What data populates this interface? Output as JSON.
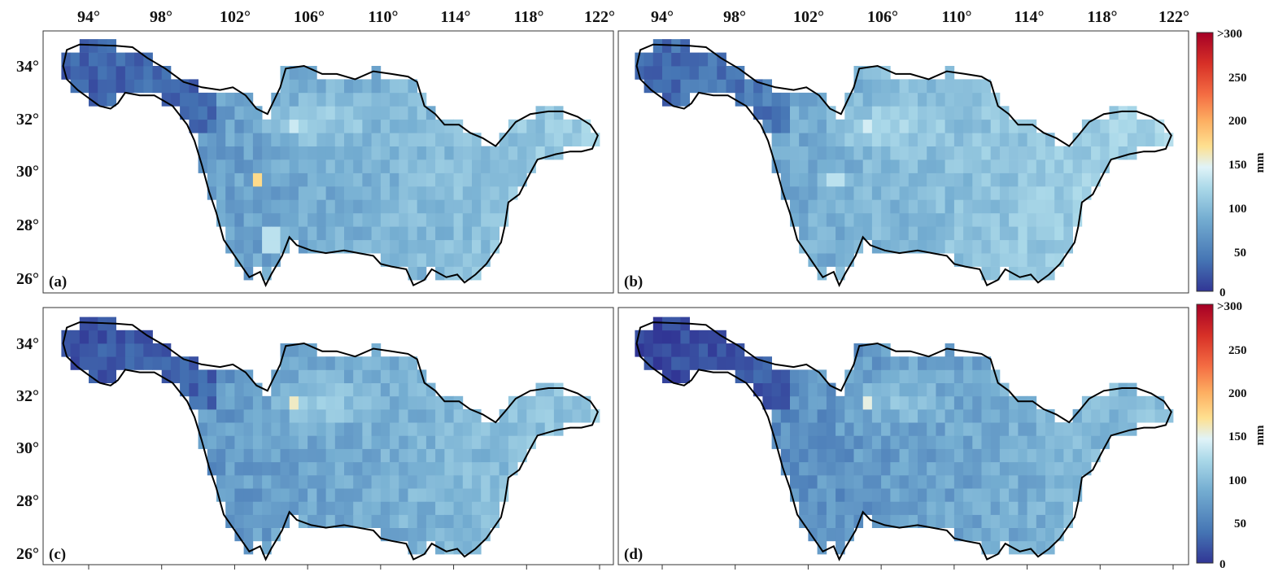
{
  "figure": {
    "top_longitude_labels": [
      "94°",
      "98°",
      "102°",
      "106°",
      "110°",
      "114°",
      "118°",
      "122°"
    ],
    "latitude_labels": [
      "34°",
      "32°",
      "30°",
      "28°",
      "26°"
    ],
    "panels": [
      {
        "label": "(a)",
        "hotspots": [
          {
            "lon": 103.2,
            "lat": 29.6,
            "value": 170
          },
          {
            "lon": 105.3,
            "lat": 31.7,
            "value": 120
          },
          {
            "lon": 104.0,
            "lat": 27.5,
            "value": 110
          }
        ]
      },
      {
        "label": "(b)",
        "hotspots": [
          {
            "lon": 105.3,
            "lat": 31.7,
            "value": 125
          },
          {
            "lon": 103.5,
            "lat": 29.7,
            "value": 110
          }
        ]
      },
      {
        "label": "(c)",
        "hotspots": [
          {
            "lon": 105.3,
            "lat": 31.7,
            "value": 150
          }
        ]
      },
      {
        "label": "(d)",
        "hotspots": [
          {
            "lon": 105.3,
            "lat": 31.7,
            "value": 140
          }
        ]
      }
    ],
    "colorbars": [
      {
        "ticks": [
          ">300",
          "250",
          "200",
          "150",
          "100",
          "50",
          "0"
        ],
        "unit": "mm"
      },
      {
        "ticks": [
          ">300",
          "250",
          "200",
          "150",
          "100",
          "50",
          "0"
        ],
        "unit": "mm"
      }
    ],
    "colorscale": [
      "#313695",
      "#4575b4",
      "#74add1",
      "#abd9e9",
      "#e0f3f8",
      "#fee090",
      "#fdae61",
      "#f46d43",
      "#d73027",
      "#a50026"
    ],
    "value_range": [
      0,
      300
    ]
  }
}
